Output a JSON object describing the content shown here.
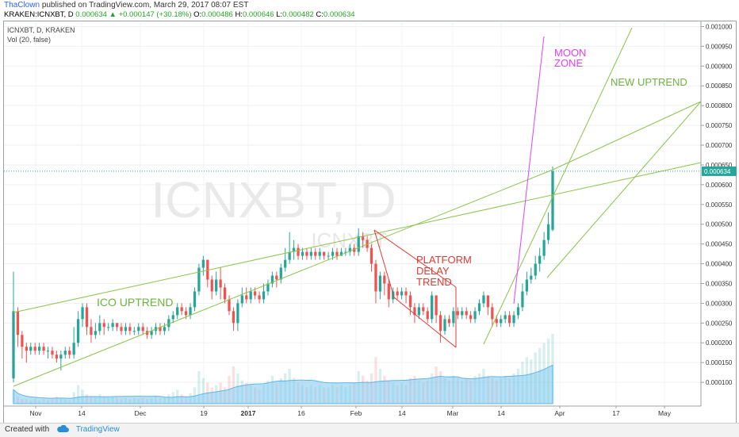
{
  "header": {
    "author": "ThaClown",
    "published_text": "published on TradingView.com, March 29, 2017 08:07 EST",
    "symbol_line": "KRAKEN:ICNXBT, D",
    "change": "0.000634 ▲ +0.000147 (+30.18%)",
    "ohlc": [
      {
        "key": "O:",
        "value": "0.000486"
      },
      {
        "key": "H:",
        "value": "0.000646"
      },
      {
        "key": "L:",
        "value": "0.000482"
      },
      {
        "key": "C:",
        "value": "0.000634"
      }
    ]
  },
  "legend": {
    "symbol": "ICNXBT, D, KRAKEN",
    "volume": "Vol (20, false)"
  },
  "watermark": {
    "big": "ICNXBT, D",
    "small": "ICNXBT"
  },
  "colors": {
    "up": "#26a69a",
    "down": "#ef5350",
    "trendline": "#8bc34a",
    "moon": "#e040fb",
    "platform": "#e53935",
    "price_tag": "#26a69a",
    "volume_ma": "#7ec8f0"
  },
  "chart_data": {
    "type": "candlestick",
    "ylim": [
      4e-05,
      0.001013
    ],
    "yticks": [
      "0.000100",
      "0.000150",
      "0.000200",
      "0.000250",
      "0.000300",
      "0.000350",
      "0.000400",
      "0.000450",
      "0.000500",
      "0.000550",
      "0.000600",
      "0.000650",
      "0.000700",
      "0.000750",
      "0.000800",
      "0.000850",
      "0.000900",
      "0.000950",
      "0.001000"
    ],
    "xticks": [
      "Nov",
      "14",
      "Dec",
      "19",
      "2017",
      "16",
      "Feb",
      "14",
      "Mar",
      "14",
      "Apr",
      "17",
      "May"
    ],
    "last_price_label": "0.000634",
    "last_price": 0.000634,
    "annotations": [
      "ICO UPTREND",
      "PLATFORM",
      "DELAY",
      "TREND",
      "MOON",
      "ZONE",
      "NEW UPTREND"
    ],
    "candles": [
      [
        0.00011,
        0.00028,
        0.00038,
        0.0001
      ],
      [
        0.00028,
        0.00022,
        0.00029,
        0.00019
      ],
      [
        0.00022,
        0.00019,
        0.00023,
        0.00016
      ],
      [
        0.00019,
        0.00018,
        0.0002,
        0.00015
      ],
      [
        0.00018,
        0.00019,
        0.0002,
        0.00017
      ],
      [
        0.00019,
        0.00018,
        0.0002,
        0.00017
      ],
      [
        0.00018,
        0.00019,
        0.0002,
        0.00017
      ],
      [
        0.00019,
        0.00018,
        0.0002,
        0.00017
      ],
      [
        0.00018,
        0.00018,
        0.00019,
        0.00016
      ],
      [
        0.00018,
        0.00017,
        0.00019,
        0.00016
      ],
      [
        0.00017,
        0.00016,
        0.00018,
        0.00015
      ],
      [
        0.00016,
        0.00017,
        0.00018,
        0.00013
      ],
      [
        0.00017,
        0.00018,
        0.00019,
        0.00016
      ],
      [
        0.00018,
        0.00017,
        0.00019,
        0.00016
      ],
      [
        0.00017,
        0.0002,
        0.00024,
        0.00016
      ],
      [
        0.0002,
        0.00026,
        0.00028,
        0.00019
      ],
      [
        0.00026,
        0.00029,
        0.0003,
        0.00024
      ],
      [
        0.00029,
        0.00024,
        0.0003,
        0.00022
      ],
      [
        0.00024,
        0.00022,
        0.00026,
        0.0002
      ],
      [
        0.00022,
        0.00023,
        0.00025,
        0.00021
      ],
      [
        0.00023,
        0.00025,
        0.00027,
        0.00022
      ],
      [
        0.00025,
        0.00024,
        0.00026,
        0.00022
      ],
      [
        0.00024,
        0.00024,
        0.00025,
        0.00023
      ],
      [
        0.00024,
        0.00025,
        0.00026,
        0.00023
      ],
      [
        0.00025,
        0.00024,
        0.00025,
        0.00023
      ],
      [
        0.00024,
        0.00023,
        0.00025,
        0.00022
      ],
      [
        0.00023,
        0.00024,
        0.00025,
        0.00022
      ],
      [
        0.00024,
        0.00023,
        0.00025,
        0.00022
      ],
      [
        0.00023,
        0.00023,
        0.00024,
        0.00022
      ],
      [
        0.00023,
        0.00024,
        0.00025,
        0.00022
      ],
      [
        0.00024,
        0.00023,
        0.00025,
        0.00022
      ],
      [
        0.00023,
        0.00022,
        0.00024,
        0.00021
      ],
      [
        0.00022,
        0.00023,
        0.00024,
        0.00021
      ],
      [
        0.00023,
        0.00024,
        0.00025,
        0.00022
      ],
      [
        0.00024,
        0.00023,
        0.00025,
        0.00022
      ],
      [
        0.00023,
        0.00024,
        0.00025,
        0.00022
      ],
      [
        0.00024,
        0.00026,
        0.00027,
        0.00023
      ],
      [
        0.00026,
        0.00027,
        0.00028,
        0.00025
      ],
      [
        0.00027,
        0.00029,
        0.0003,
        0.00026
      ],
      [
        0.00029,
        0.00028,
        0.0003,
        0.00027
      ],
      [
        0.00028,
        0.00027,
        0.00029,
        0.00026
      ],
      [
        0.00027,
        0.00029,
        0.0003,
        0.00026
      ],
      [
        0.00029,
        0.00033,
        0.00034,
        0.00028
      ],
      [
        0.00033,
        0.00039,
        0.0004,
        0.00032
      ],
      [
        0.00039,
        0.00041,
        0.00042,
        0.00037
      ],
      [
        0.00041,
        0.00036,
        0.00041,
        0.00034
      ],
      [
        0.00036,
        0.00033,
        0.00037,
        0.00031
      ],
      [
        0.00033,
        0.00036,
        0.00038,
        0.00032
      ],
      [
        0.00036,
        0.00034,
        0.00039,
        0.00031
      ],
      [
        0.00034,
        0.00031,
        0.00035,
        0.0003
      ],
      [
        0.00031,
        0.00028,
        0.00032,
        0.00027
      ],
      [
        0.00028,
        0.00025,
        0.00029,
        0.00023
      ],
      [
        0.00025,
        0.0003,
        0.00031,
        0.00023
      ],
      [
        0.0003,
        0.00032,
        0.00034,
        0.00029
      ],
      [
        0.00032,
        0.00031,
        0.00034,
        0.0003
      ],
      [
        0.00031,
        0.00033,
        0.00034,
        0.0003
      ],
      [
        0.00033,
        0.00032,
        0.00034,
        0.00031
      ],
      [
        0.00032,
        0.00031,
        0.00033,
        0.0003
      ],
      [
        0.00031,
        0.00033,
        0.00035,
        0.0003
      ],
      [
        0.00033,
        0.00035,
        0.00036,
        0.00032
      ],
      [
        0.00035,
        0.00037,
        0.00038,
        0.00034
      ],
      [
        0.00037,
        0.00036,
        0.00038,
        0.00034
      ],
      [
        0.00036,
        0.00039,
        0.0004,
        0.00035
      ],
      [
        0.00039,
        0.00041,
        0.00044,
        0.00038
      ],
      [
        0.00041,
        0.00043,
        0.00048,
        0.0004
      ],
      [
        0.00043,
        0.00044,
        0.00046,
        0.00041
      ],
      [
        0.00044,
        0.00042,
        0.00045,
        0.00041
      ],
      [
        0.00042,
        0.00043,
        0.00044,
        0.00041
      ],
      [
        0.00043,
        0.00042,
        0.00044,
        0.00041
      ],
      [
        0.00042,
        0.00043,
        0.00044,
        0.00041
      ],
      [
        0.00043,
        0.00042,
        0.00044,
        0.00041
      ],
      [
        0.00042,
        0.00043,
        0.00044,
        0.00041
      ],
      [
        0.00043,
        0.00042,
        0.00043,
        0.00041
      ],
      [
        0.00042,
        0.00042,
        0.00043,
        0.00041
      ],
      [
        0.00042,
        0.00043,
        0.00044,
        0.00041
      ],
      [
        0.00043,
        0.00042,
        0.00044,
        0.00041
      ],
      [
        0.00042,
        0.00043,
        0.00044,
        0.00042
      ],
      [
        0.00043,
        0.00043,
        0.00044,
        0.00042
      ],
      [
        0.00043,
        0.00044,
        0.00045,
        0.00042
      ],
      [
        0.00044,
        0.00043,
        0.00045,
        0.00042
      ],
      [
        0.00043,
        0.00047,
        0.00049,
        0.00042
      ],
      [
        0.00047,
        0.00046,
        0.00048,
        0.00044
      ],
      [
        0.00046,
        0.00044,
        0.00047,
        0.00043
      ],
      [
        0.00044,
        0.0004,
        0.00045,
        0.00038
      ],
      [
        0.0004,
        0.00033,
        0.00041,
        0.0003
      ],
      [
        0.00033,
        0.00037,
        0.00038,
        0.00031
      ],
      [
        0.00037,
        0.00035,
        0.00038,
        0.00032
      ],
      [
        0.00035,
        0.00031,
        0.00036,
        0.00029
      ],
      [
        0.00031,
        0.00033,
        0.00034,
        0.0003
      ],
      [
        0.00033,
        0.00032,
        0.00034,
        0.00031
      ],
      [
        0.00032,
        0.00033,
        0.00034,
        0.00031
      ],
      [
        0.00033,
        0.00032,
        0.00034,
        0.0003
      ],
      [
        0.00032,
        0.00029,
        0.00033,
        0.00027
      ],
      [
        0.00029,
        0.00027,
        0.0003,
        0.00025
      ],
      [
        0.00027,
        0.00029,
        0.0003,
        0.00026
      ],
      [
        0.00029,
        0.00028,
        0.0003,
        0.00027
      ],
      [
        0.00028,
        0.00026,
        0.00029,
        0.00025
      ],
      [
        0.00026,
        0.00032,
        0.00033,
        0.00025
      ],
      [
        0.00032,
        0.00027,
        0.00032,
        0.00025
      ],
      [
        0.00027,
        0.00023,
        0.00028,
        0.0002
      ],
      [
        0.00023,
        0.00026,
        0.00027,
        0.00022
      ],
      [
        0.00026,
        0.00025,
        0.00027,
        0.00024
      ],
      [
        0.00025,
        0.00028,
        0.00029,
        0.00024
      ],
      [
        0.00028,
        0.00027,
        0.00029,
        0.00026
      ],
      [
        0.00027,
        0.00028,
        0.00029,
        0.00026
      ],
      [
        0.00028,
        0.00027,
        0.00029,
        0.00026
      ],
      [
        0.00027,
        0.00026,
        0.00028,
        0.00025
      ],
      [
        0.00026,
        0.00028,
        0.00029,
        0.00025
      ],
      [
        0.00028,
        0.0003,
        0.00031,
        0.00027
      ],
      [
        0.0003,
        0.00032,
        0.00033,
        0.00029
      ],
      [
        0.00032,
        0.00029,
        0.00032,
        0.00027
      ],
      [
        0.00029,
        0.00026,
        0.0003,
        0.00024
      ],
      [
        0.00026,
        0.00025,
        0.00027,
        0.00024
      ],
      [
        0.00025,
        0.00026,
        0.00027,
        0.00024
      ],
      [
        0.00026,
        0.00027,
        0.00028,
        0.00025
      ],
      [
        0.00027,
        0.00025,
        0.00028,
        0.00024
      ],
      [
        0.00025,
        0.00027,
        0.00028,
        0.00024
      ],
      [
        0.00027,
        0.00029,
        0.0003,
        0.00026
      ],
      [
        0.00029,
        0.00033,
        0.00035,
        0.00028
      ],
      [
        0.00033,
        0.00036,
        0.00038,
        0.00032
      ],
      [
        0.00036,
        0.00037,
        0.00039,
        0.00035
      ],
      [
        0.00037,
        0.0004,
        0.00042,
        0.00036
      ],
      [
        0.0004,
        0.00042,
        0.00044,
        0.00038
      ],
      [
        0.00042,
        0.00046,
        0.00048,
        0.00041
      ],
      [
        0.00046,
        0.0005,
        0.00053,
        0.00045
      ],
      [
        0.000486,
        0.000634,
        0.000646,
        0.000482
      ]
    ],
    "volumes": [
      0.6,
      0.3,
      0.2,
      0.2,
      0.15,
      0.2,
      0.15,
      0.2,
      0.15,
      0.2,
      0.3,
      0.25,
      0.2,
      0.15,
      0.5,
      0.8,
      0.6,
      0.4,
      0.3,
      0.3,
      0.4,
      0.3,
      0.25,
      0.3,
      0.25,
      0.2,
      0.25,
      0.2,
      0.25,
      0.2,
      0.25,
      0.2,
      0.25,
      0.3,
      0.25,
      0.3,
      0.4,
      0.5,
      0.6,
      0.4,
      0.3,
      0.45,
      0.7,
      1.4,
      1.1,
      0.9,
      0.7,
      0.8,
      0.9,
      0.7,
      1.2,
      1.6,
      1.3,
      1.0,
      0.9,
      0.8,
      0.7,
      0.6,
      0.8,
      1.0,
      1.2,
      0.9,
      1.1,
      1.3,
      1.5,
      1.1,
      0.9,
      0.8,
      0.7,
      0.8,
      0.7,
      0.8,
      0.7,
      0.7,
      0.8,
      0.7,
      0.8,
      0.7,
      0.8,
      0.9,
      1.4,
      1.2,
      1.0,
      1.3,
      2.0,
      1.5,
      1.2,
      1.0,
      0.9,
      0.8,
      0.9,
      0.8,
      1.1,
      1.2,
      1.0,
      0.9,
      1.0,
      1.3,
      1.6,
      1.4,
      1.1,
      1.0,
      1.2,
      1.1,
      1.0,
      1.1,
      1.0,
      1.2,
      1.3,
      1.5,
      1.2,
      1.1,
      1.0,
      1.1,
      1.2,
      1.1,
      1.3,
      1.5,
      1.8,
      2.0,
      1.9,
      2.2,
      2.4,
      2.6,
      2.8,
      3.0
    ]
  }
}
